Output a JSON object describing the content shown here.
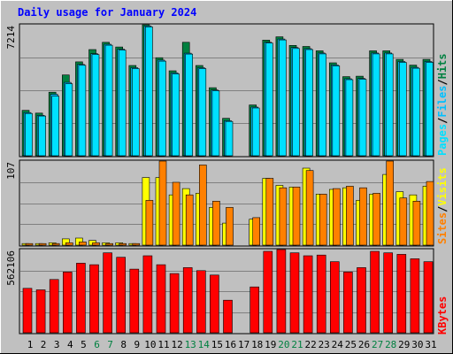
{
  "title": "Daily usage for January 2024",
  "colors": {
    "background": "#c0c0c0",
    "title": "#0000ff",
    "hits": "#008040",
    "files": "#00c0ff",
    "pages": "#00e0ff",
    "visits": "#ffff00",
    "sites": "#ff8000",
    "kbytes": "#ff0000",
    "weekend_day_label": "#008040"
  },
  "chart_data": [
    {
      "type": "bar",
      "panel": "hits-files-pages",
      "scale_max_label": "7214",
      "ylim": [
        0,
        7214
      ],
      "legend": [
        "Pages",
        "/",
        "Files",
        "/",
        "Hits"
      ],
      "categories": [
        "1",
        "2",
        "3",
        "4",
        "5",
        "6",
        "7",
        "8",
        "9",
        "10",
        "11",
        "12",
        "13",
        "14",
        "15",
        "16",
        "17",
        "18",
        "19",
        "20",
        "21",
        "22",
        "23",
        "24",
        "25",
        "26",
        "27",
        "28",
        "29",
        "30",
        "31"
      ],
      "series": [
        {
          "name": "Hits",
          "values": [
            2500,
            2350,
            3500,
            4450,
            5170,
            5850,
            6250,
            5990,
            4970,
            7214,
            5400,
            4680,
            6250,
            4970,
            3750,
            2060,
            0,
            2800,
            6370,
            6550,
            6080,
            6020,
            5780,
            5120,
            4360,
            4380,
            5780,
            5780,
            5310,
            4990,
            5310
          ]
        },
        {
          "name": "Files",
          "values": [
            2380,
            2230,
            3390,
            4040,
            5030,
            5620,
            6140,
            5870,
            4850,
            7150,
            5270,
            4560,
            5650,
            4850,
            3620,
            1930,
            0,
            2680,
            6250,
            6430,
            5960,
            5900,
            5660,
            5000,
            4240,
            4260,
            5660,
            5660,
            5190,
            4870,
            5190
          ]
        },
        {
          "name": "Pages",
          "values": [
            2330,
            2190,
            3280,
            3970,
            4980,
            5570,
            6090,
            5820,
            4800,
            7100,
            5210,
            4510,
            5600,
            4800,
            3580,
            1890,
            0,
            2630,
            6210,
            6380,
            5910,
            5850,
            5610,
            4950,
            4190,
            4210,
            5610,
            5610,
            5140,
            4820,
            5140
          ]
        }
      ]
    },
    {
      "type": "bar",
      "panel": "visits-sites",
      "scale_max_label": "107",
      "ylim": [
        0,
        107
      ],
      "legend": [
        "Sites",
        "/",
        "Visits"
      ],
      "categories": [
        "1",
        "2",
        "3",
        "4",
        "5",
        "6",
        "7",
        "8",
        "9",
        "10",
        "11",
        "12",
        "13",
        "14",
        "15",
        "16",
        "17",
        "18",
        "19",
        "20",
        "21",
        "22",
        "23",
        "24",
        "25",
        "26",
        "27",
        "28",
        "29",
        "30",
        "31"
      ],
      "series": [
        {
          "name": "Visits",
          "values": [
            2,
            2,
            3,
            8,
            9,
            6,
            3,
            3,
            2,
            86,
            86,
            64,
            72,
            66,
            48,
            28,
            0,
            33,
            85,
            76,
            74,
            98,
            65,
            71,
            73,
            57,
            65,
            90,
            68,
            64,
            75
          ]
        },
        {
          "name": "Sites",
          "values": [
            2,
            2,
            2,
            3,
            4,
            3,
            2,
            2,
            2,
            57,
            107,
            80,
            64,
            102,
            56,
            48,
            0,
            35,
            85,
            73,
            74,
            95,
            65,
            72,
            75,
            73,
            66,
            107,
            60,
            56,
            81
          ]
        }
      ]
    },
    {
      "type": "bar",
      "panel": "kbytes",
      "scale_max_label": "562106",
      "ylim": [
        0,
        562106
      ],
      "legend": [
        "KBytes"
      ],
      "categories": [
        "1",
        "2",
        "3",
        "4",
        "5",
        "6",
        "7",
        "8",
        "9",
        "10",
        "11",
        "12",
        "13",
        "14",
        "15",
        "16",
        "17",
        "18",
        "19",
        "20",
        "21",
        "22",
        "23",
        "24",
        "25",
        "26",
        "27",
        "28",
        "29",
        "30",
        "31"
      ],
      "series": [
        {
          "name": "KBytes",
          "values": [
            300000,
            290000,
            360000,
            410000,
            470000,
            460000,
            540000,
            510000,
            430000,
            520000,
            460000,
            400000,
            440000,
            420000,
            390000,
            220000,
            0,
            310000,
            550000,
            562106,
            540000,
            520000,
            525000,
            480000,
            410000,
            440000,
            550000,
            540000,
            530000,
            500000,
            480000
          ]
        }
      ]
    }
  ],
  "x_axis": {
    "labels": [
      "1",
      "2",
      "3",
      "4",
      "5",
      "6",
      "7",
      "8",
      "9",
      "10",
      "11",
      "12",
      "13",
      "14",
      "15",
      "16",
      "17",
      "18",
      "19",
      "20",
      "21",
      "22",
      "23",
      "24",
      "25",
      "26",
      "27",
      "28",
      "29",
      "30",
      "31"
    ],
    "weekend_days": [
      "6",
      "7",
      "13",
      "14",
      "20",
      "21",
      "27",
      "28"
    ]
  }
}
